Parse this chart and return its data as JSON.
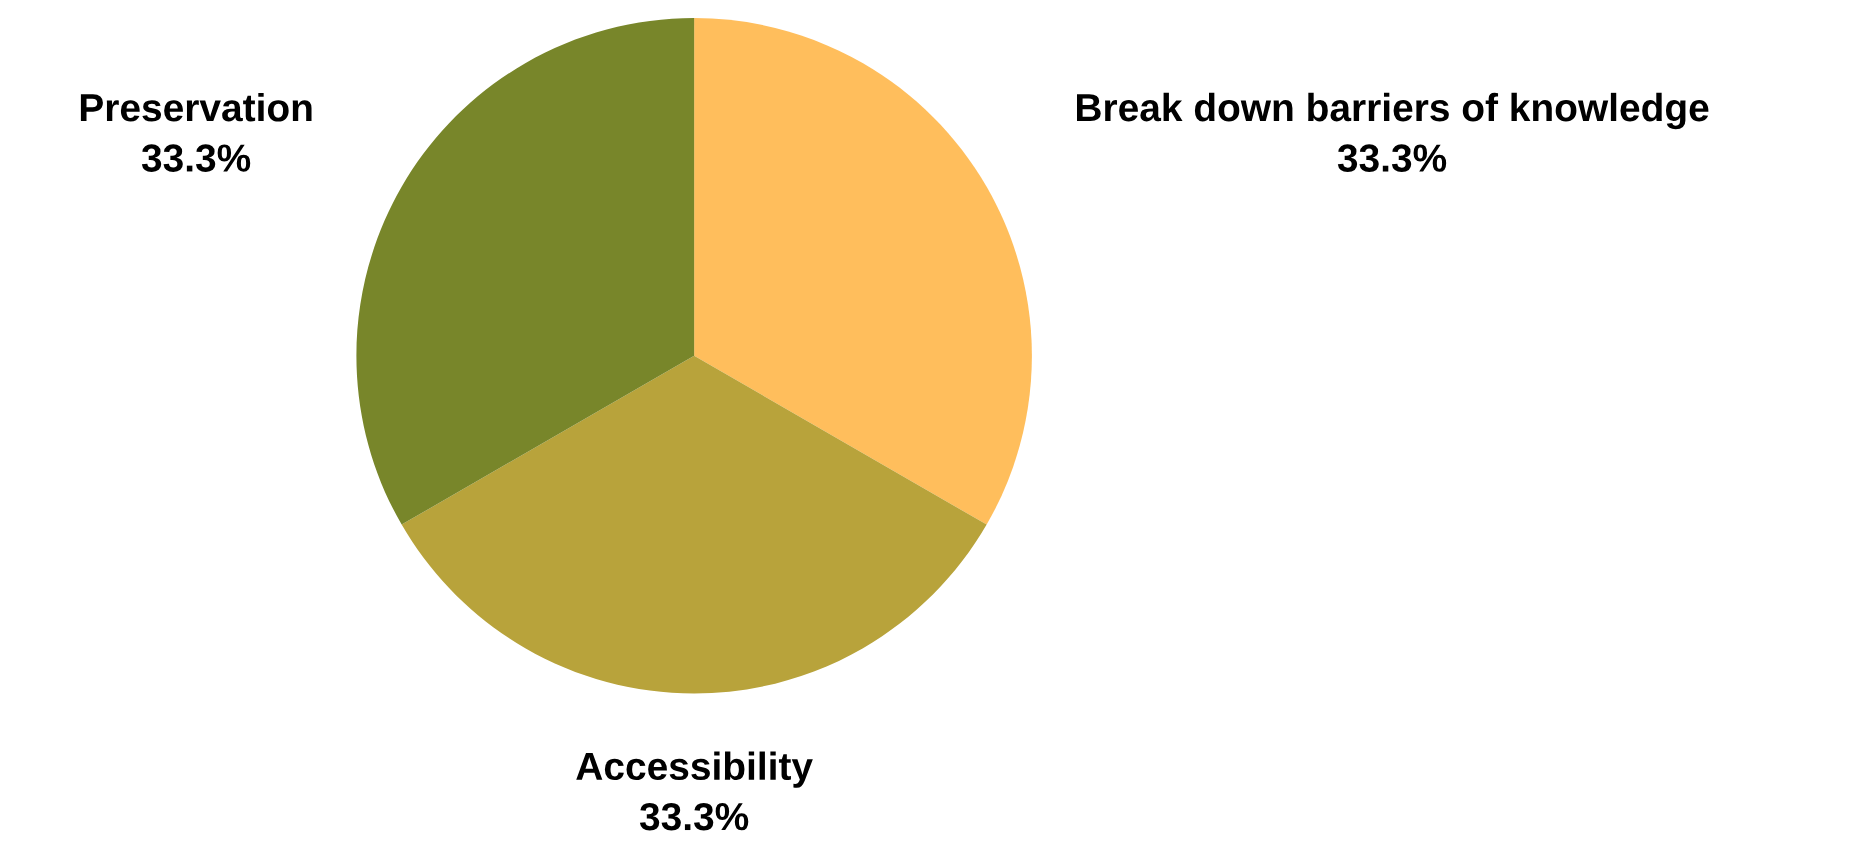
{
  "chart_data": {
    "type": "pie",
    "categories": [
      "Break down barriers of knowledge",
      "Accessibility",
      "Preservation"
    ],
    "values": [
      33.3,
      33.3,
      33.3
    ],
    "value_labels": [
      "33.3%",
      "33.3%",
      "33.3%"
    ],
    "colors": [
      "#ffbe5c",
      "#b8a33b",
      "#78862a"
    ],
    "legend": false
  }
}
